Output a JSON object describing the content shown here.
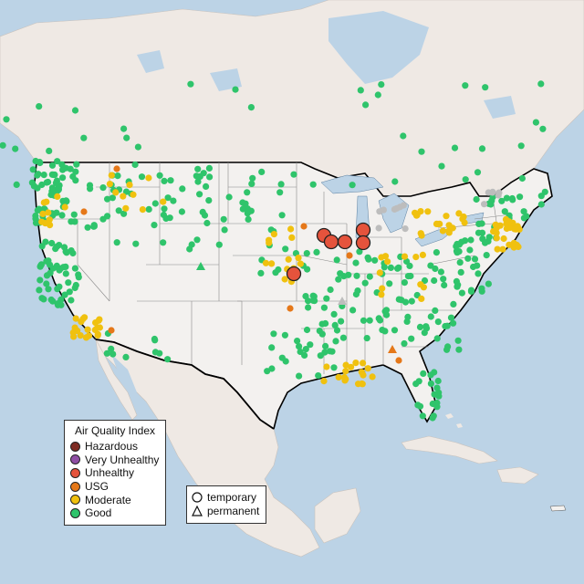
{
  "legend_aqi": {
    "title": "Air Quality Index",
    "items": [
      {
        "label": "Hazardous",
        "color": "#7e2b22"
      },
      {
        "label": "Very Unhealthy",
        "color": "#8f4fa5"
      },
      {
        "label": "Unhealthy",
        "color": "#e5533c"
      },
      {
        "label": "USG",
        "color": "#e57819"
      },
      {
        "label": "Moderate",
        "color": "#f0c10f"
      },
      {
        "label": "Good",
        "color": "#2fc46b"
      }
    ]
  },
  "legend_type": {
    "items": [
      {
        "label": "temporary",
        "shape": "circle"
      },
      {
        "label": "permanent",
        "shape": "triangle"
      }
    ]
  },
  "colors": {
    "water": "#bcd3e6",
    "land": "#efe9e4",
    "us_land": "#f3f1ef",
    "no_data": "#bdbdbd"
  }
}
